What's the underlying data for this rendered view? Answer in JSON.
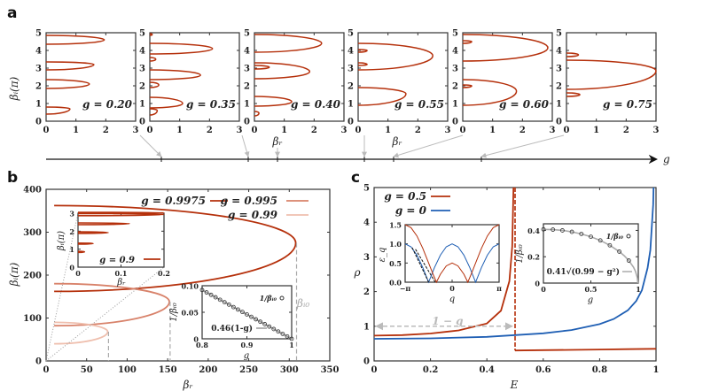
{
  "chart_data": [
    {
      "panel": "a",
      "type": "line",
      "xlabel": "βᵣ",
      "ylabel": "βᵢ(π)",
      "g_axis_label": "g",
      "xlim": [
        0,
        3
      ],
      "ylim": [
        0,
        5
      ],
      "xticks": [
        0,
        1,
        2,
        3
      ],
      "xtick_labels": [
        "0",
        "1",
        "2",
        "3"
      ],
      "yticks": [
        0,
        1,
        2,
        3,
        4,
        5
      ],
      "ytick_labels": [
        "0",
        "1",
        "2",
        "3",
        "4",
        "5"
      ],
      "color": "#b5300b",
      "loop_format": [
        "beta_i_start",
        "beta_i_end",
        "beta_r_max",
        "beta_i_at_max"
      ],
      "subplots": [
        {
          "legend": "g = 0.20",
          "loops": [
            [
              0.4,
              0.8,
              0.8,
              0.7
            ],
            [
              1.85,
              2.35,
              1.45,
              2.1
            ],
            [
              2.9,
              3.35,
              1.6,
              3.2
            ],
            [
              4.35,
              4.85,
              1.95,
              4.6
            ]
          ]
        },
        {
          "legend": "g = 0.35",
          "loops": [
            [
              0.35,
              0.7,
              0.25,
              0.6
            ],
            [
              0.75,
              1.35,
              1.1,
              1.0
            ],
            [
              1.9,
              2.2,
              0.3,
              2.05
            ],
            [
              2.35,
              2.9,
              1.7,
              2.6
            ],
            [
              3.4,
              3.6,
              0.2,
              3.5
            ],
            [
              3.8,
              4.4,
              2.1,
              4.1
            ],
            [
              4.85,
              4.95,
              0.08,
              4.9
            ]
          ]
        },
        {
          "legend": "g = 0.40",
          "loops": [
            [
              0.3,
              0.55,
              0.15,
              0.45
            ],
            [
              0.85,
              1.4,
              1.25,
              1.1
            ],
            [
              2.4,
              3.3,
              1.85,
              2.8
            ],
            [
              2.95,
              3.15,
              0.5,
              3.05
            ],
            [
              3.9,
              4.9,
              2.25,
              4.4
            ]
          ]
        },
        {
          "legend": "g = 0.55",
          "loops": [
            [
              0.9,
              1.9,
              1.6,
              1.55
            ],
            [
              2.9,
              4.4,
              2.5,
              3.7
            ],
            [
              3.15,
              3.3,
              0.3,
              3.2
            ],
            [
              3.9,
              4.05,
              0.3,
              4.0
            ]
          ]
        },
        {
          "legend": "g = 0.60",
          "loops": [
            [
              0.9,
              2.35,
              1.8,
              1.7
            ],
            [
              1.9,
              2.05,
              0.3,
              2.0
            ],
            [
              3.4,
              4.9,
              2.85,
              4.15
            ],
            [
              4.4,
              4.55,
              0.3,
              4.5
            ]
          ]
        },
        {
          "legend": "g = 0.75",
          "loops": [
            [
              1.8,
              3.45,
              3.0,
              2.85
            ],
            [
              1.4,
              1.6,
              0.45,
              1.5
            ],
            [
              3.65,
              3.85,
              0.4,
              3.75
            ]
          ]
        }
      ]
    },
    {
      "panel": "b",
      "type": "line",
      "xlabel": "βᵣ",
      "ylabel": "βᵢ(π)",
      "xlim": [
        0,
        350
      ],
      "ylim": [
        0,
        400
      ],
      "xticks": [
        0,
        50,
        100,
        150,
        200,
        250,
        300,
        350
      ],
      "xtick_labels": [
        "0",
        "50",
        "100",
        "150",
        "200",
        "250",
        "300",
        "350"
      ],
      "yticks": [
        0,
        100,
        200,
        300,
        400
      ],
      "ytick_labels": [
        "0",
        "100",
        "200",
        "300",
        "400"
      ],
      "beta_i0_label": "βᵢ₀",
      "series": [
        {
          "name": "g = 0.9975",
          "color": "#b5300b",
          "loop": [
            162,
            362,
            308,
            275
          ],
          "beta_r_start": 10
        },
        {
          "name": "g = 0.995",
          "color": "#d8826a",
          "loop": [
            82,
            180,
            152,
            138
          ],
          "beta_r_start": 10
        },
        {
          "name": "g = 0.99",
          "color": "#efbfae",
          "loop": [
            40,
            90,
            76,
            68
          ],
          "beta_r_start": 10
        }
      ],
      "inset_left": {
        "xlabel": "βᵣ",
        "ylabel": "βᵢ(π)",
        "xlim": [
          0,
          0.2
        ],
        "ylim": [
          0,
          3
        ],
        "xticks": [
          0,
          0.1,
          0.2
        ],
        "xtick_labels": [
          "0",
          "0.1",
          "0.2"
        ],
        "yticks": [
          0,
          1,
          2,
          3
        ],
        "ytick_labels": [
          "0",
          "1",
          "2",
          "3"
        ],
        "legend": "g = 0.9",
        "color": "#b5300b",
        "loops": [
          [
            0.82,
            0.88,
            0.015,
            0.85
          ],
          [
            1.28,
            1.34,
            0.035,
            1.31
          ],
          [
            1.88,
            1.96,
            0.07,
            1.92
          ],
          [
            2.36,
            2.46,
            0.12,
            2.42
          ],
          [
            2.86,
            2.98,
            0.2,
            2.93
          ],
          [
            3.0,
            3.05,
            0.2,
            3.02
          ]
        ]
      },
      "inset_right": {
        "xlabel": "g",
        "ylabel": "1/βᵢ₀",
        "xlim": [
          0.8,
          1
        ],
        "ylim": [
          0,
          0.1
        ],
        "xticks": [
          0.8,
          0.9,
          1
        ],
        "xtick_labels": [
          "0.8",
          "0.9",
          "1"
        ],
        "yticks": [
          0,
          0.05,
          0.1
        ],
        "ytick_labels": [
          "0",
          "0.05",
          "0.10"
        ],
        "points_legend": "1/βᵢ₀",
        "fit_legend": "0.46(1-g)",
        "points_g": [
          0.8,
          0.81,
          0.82,
          0.83,
          0.84,
          0.85,
          0.86,
          0.87,
          0.88,
          0.89,
          0.9,
          0.91,
          0.92,
          0.93,
          0.94,
          0.95,
          0.96,
          0.97,
          0.98,
          0.99,
          1.0
        ],
        "points_y": [
          0.092,
          0.0874,
          0.0828,
          0.0782,
          0.0736,
          0.069,
          0.0644,
          0.0598,
          0.0552,
          0.0506,
          0.046,
          0.0414,
          0.0368,
          0.0322,
          0.0276,
          0.023,
          0.0184,
          0.0138,
          0.0092,
          0.0046,
          0.0
        ],
        "fit_g": [
          0.8,
          1.0
        ],
        "fit_y": [
          0.092,
          0.0
        ]
      }
    },
    {
      "panel": "c",
      "type": "line",
      "xlabel": "E",
      "ylabel": "ρ",
      "xlim": [
        0,
        1
      ],
      "ylim": [
        0,
        5
      ],
      "xticks": [
        0,
        0.2,
        0.4,
        0.6,
        0.8,
        1
      ],
      "xtick_labels": [
        "0",
        "0.2",
        "0.4",
        "0.6",
        "0.8",
        "1"
      ],
      "yticks": [
        0,
        1,
        2,
        3,
        4,
        5
      ],
      "ytick_labels": [
        "0",
        "1",
        "2",
        "3",
        "4",
        "5"
      ],
      "gap_label": "1 − g",
      "series": [
        {
          "name": "g = 0.5",
          "color": "#b5300b",
          "segments": [
            {
              "E": [
                0,
                0.1,
                0.2,
                0.3,
                0.4,
                0.45,
                0.48,
                0.49,
                0.495,
                0.499
              ],
              "rho": [
                0.73,
                0.745,
                0.79,
                0.88,
                1.08,
                1.45,
                2.3,
                3.3,
                5.2,
                9
              ]
            },
            {
              "E": [
                0.5,
                0.6,
                0.7,
                0.8,
                0.9,
                1.0
              ],
              "rho": [
                0.3,
                0.31,
                0.32,
                0.33,
                0.34,
                0.35
              ]
            }
          ]
        },
        {
          "name": "g = 0",
          "color": "#1f5fb4",
          "segments": [
            {
              "E": [
                0,
                0.2,
                0.4,
                0.6,
                0.7,
                0.8,
                0.85,
                0.9,
                0.93,
                0.95,
                0.97,
                0.98,
                0.99,
                0.995
              ],
              "rho": [
                0.637,
                0.65,
                0.695,
                0.796,
                0.891,
                1.061,
                1.208,
                1.46,
                1.73,
                2.039,
                2.68,
                3.2,
                4.51,
                6.37
              ]
            }
          ]
        }
      ],
      "inset_left": {
        "xlabel": "q",
        "ylabel": "ε_q",
        "xlim": [
          -1,
          1
        ],
        "ylim": [
          0,
          1.5
        ],
        "xticks": [
          -1,
          0,
          1
        ],
        "xtick_labels": [
          "−π",
          "0",
          "π"
        ],
        "yticks": [
          0,
          0.5,
          1.0,
          1.5
        ],
        "ytick_labels": [
          "0.0",
          "0.5",
          "1.0",
          "1.5"
        ],
        "q_over_pi": [
          -1,
          -0.875,
          -0.75,
          -0.625,
          -0.5,
          -0.375,
          -0.25,
          -0.125,
          0,
          0.125,
          0.25,
          0.375,
          0.5,
          0.625,
          0.75,
          0.875,
          1
        ],
        "eps_g0": [
          1,
          0.924,
          0.707,
          0.383,
          0,
          0.383,
          0.707,
          0.924,
          1,
          0.924,
          0.707,
          0.383,
          0,
          0.383,
          0.707,
          0.924,
          1
        ],
        "q_over_pi_red": [
          -1,
          -0.875,
          -0.75,
          -0.625,
          -0.5,
          -0.4167,
          -0.3333,
          -0.25,
          -0.125,
          0,
          0.125,
          0.25,
          0.3333,
          0.4167,
          0.5,
          0.625,
          0.75,
          0.875,
          1
        ],
        "eps_g05": [
          1.5,
          1.424,
          1.207,
          0.883,
          0.5,
          0.241,
          0,
          0.207,
          0.424,
          0.5,
          0.424,
          0.207,
          0,
          0.241,
          0.5,
          0.883,
          1.207,
          1.424,
          1.5
        ],
        "dashed_lines": [
          [
            [
              -0.85,
              0.9
            ],
            [
              -0.5,
              0
            ]
          ],
          [
            [
              -0.78,
              0.86
            ],
            [
              -0.36,
              0
            ]
          ]
        ]
      },
      "inset_right": {
        "xlabel": "g",
        "ylabel": "1/βᵢ₀",
        "xlim": [
          0,
          1
        ],
        "ylim": [
          0,
          0.45
        ],
        "xticks": [
          0,
          0.5,
          1
        ],
        "xtick_labels": [
          "0",
          "0.5",
          "1"
        ],
        "yticks": [
          0,
          0.2,
          0.4
        ],
        "ytick_labels": [
          "0",
          "0.2",
          "0.4"
        ],
        "points_legend": "1/βᵢ₀",
        "fit_legend": "0.41√(0.99 − g²)",
        "points_g": [
          0,
          0.1,
          0.2,
          0.3,
          0.4,
          0.5,
          0.6,
          0.7,
          0.8,
          0.9
        ],
        "points_y": [
          0.408,
          0.406,
          0.4,
          0.389,
          0.373,
          0.352,
          0.324,
          0.287,
          0.239,
          0.171
        ],
        "fit_g": [
          0,
          0.1,
          0.2,
          0.3,
          0.4,
          0.5,
          0.6,
          0.7,
          0.8,
          0.85,
          0.9,
          0.95,
          0.97,
          0.99,
          0.995
        ],
        "fit_y": [
          0.408,
          0.406,
          0.4,
          0.389,
          0.373,
          0.352,
          0.324,
          0.287,
          0.239,
          0.208,
          0.171,
          0.121,
          0.09,
          0.041,
          0
        ]
      }
    }
  ],
  "panel_labels": [
    "a",
    "b",
    "c"
  ]
}
